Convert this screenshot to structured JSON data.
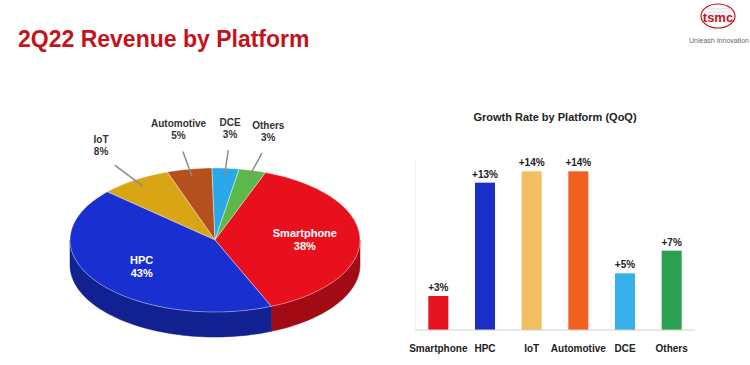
{
  "page": {
    "title": "2Q22 Revenue by Platform",
    "logo": "tsmc",
    "tagline": "Unleash Innovation"
  },
  "chart_data": [
    {
      "type": "pie",
      "categories": [
        "IoT",
        "Automotive",
        "DCE",
        "Others",
        "Smartphone",
        "HPC"
      ],
      "values": [
        8,
        5,
        3,
        3,
        38,
        43
      ],
      "value_labels": [
        "8%",
        "5%",
        "3%",
        "3%",
        "38%",
        "43%"
      ],
      "colors": [
        "#d9a514",
        "#b5501c",
        "#2aa8e8",
        "#5cb848",
        "#e8101c",
        "#1a2fd0"
      ],
      "data_labels": true
    },
    {
      "type": "bar",
      "title": "Growth Rate by Platform (QoQ)",
      "categories": [
        "Smartphone",
        "HPC",
        "IoT",
        "Automotive",
        "DCE",
        "Others"
      ],
      "values": [
        3,
        13,
        14,
        14,
        5,
        7
      ],
      "value_labels": [
        "+3%",
        "+13%",
        "+14%",
        "+14%",
        "+5%",
        "+7%"
      ],
      "colors": [
        "#e3141e",
        "#1a2fc8",
        "#f2bf5e",
        "#f0601e",
        "#35b0e8",
        "#2aa050"
      ],
      "ylim": [
        0,
        15
      ],
      "data_labels": true,
      "tick_labels": "x"
    }
  ]
}
